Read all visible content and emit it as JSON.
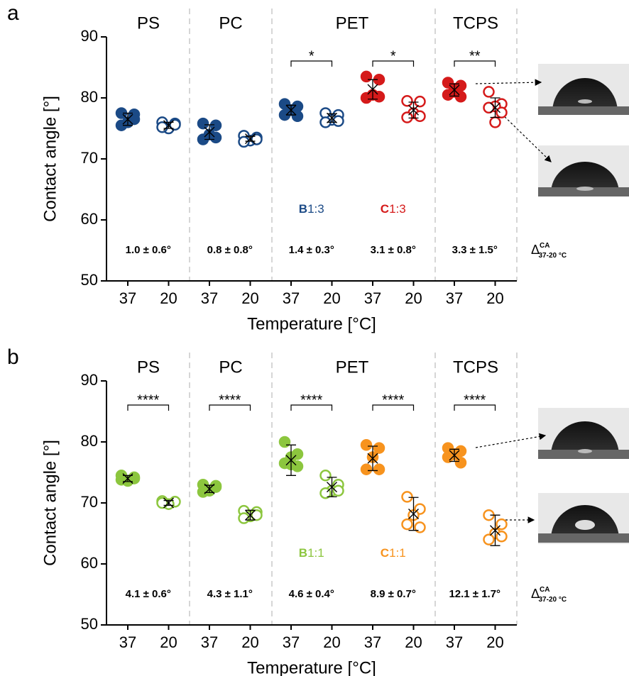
{
  "chart_data": [
    {
      "type": "strip",
      "panel": "a",
      "headers": [
        "PS",
        "PC",
        "PET",
        "TCPS"
      ],
      "categories": [
        "37",
        "20",
        "37",
        "20",
        "37",
        "20",
        "37",
        "20",
        "37",
        "20"
      ],
      "filled": [
        true,
        false,
        true,
        false,
        true,
        false,
        true,
        false,
        true,
        false
      ],
      "colors": [
        "#1b4a86",
        "#1b4a86",
        "#1b4a86",
        "#d51a1a",
        "#d51a1a"
      ],
      "points": [
        [
          77.5,
          77.3,
          76.0,
          75.5,
          76.5
        ],
        [
          76.0,
          75.8,
          75.0,
          75.2,
          75.6
        ],
        [
          75.8,
          75.5,
          74.0,
          73.2,
          73.5
        ],
        [
          73.8,
          73.5,
          73.0,
          72.8,
          73.2
        ],
        [
          79.0,
          78.6,
          78.0,
          77.2,
          77.0
        ],
        [
          77.5,
          77.2,
          76.4,
          76.0,
          76.2
        ],
        [
          83.5,
          83.0,
          80.5,
          80.0,
          80.2
        ],
        [
          79.5,
          79.4,
          77.5,
          76.8,
          77.0
        ],
        [
          82.5,
          82.0,
          81.0,
          80.5,
          80.2,
          81.5
        ],
        [
          81.0,
          79.0,
          78.6,
          78.4,
          77.6,
          76.0
        ]
      ],
      "means": [
        76.5,
        75.5,
        74.4,
        73.3,
        78.0,
        76.7,
        81.4,
        78.0,
        81.3,
        78.4
      ],
      "errors": [
        1.0,
        0.5,
        1.2,
        0.4,
        0.8,
        0.7,
        1.6,
        1.3,
        1.0,
        1.6
      ],
      "significance": [
        null,
        null,
        "*",
        "*",
        "**"
      ],
      "deltas": [
        "1.0 ± 0.6°",
        "0.8 ± 0.8°",
        "1.4 ± 0.3°",
        "3.1 ± 0.8°",
        "3.3 ± 1.5°"
      ],
      "annotations": [
        {
          "letter": "B",
          "ratio": "1:3"
        },
        {
          "letter": "C",
          "ratio": "1:3"
        }
      ],
      "delta_label": {
        "symbol": "Δ",
        "sup": "CA",
        "sub": "37-20 °C"
      },
      "ylim": [
        50,
        90
      ],
      "yticks": [
        50,
        60,
        70,
        80,
        90
      ],
      "ylabel": "Contact angle [°]",
      "xlabel": "Temperature [°C]"
    },
    {
      "type": "strip",
      "panel": "b",
      "headers": [
        "PS",
        "PC",
        "PET",
        "TCPS"
      ],
      "categories": [
        "37",
        "20",
        "37",
        "20",
        "37",
        "20",
        "37",
        "20",
        "37",
        "20"
      ],
      "filled": [
        true,
        false,
        true,
        false,
        true,
        false,
        true,
        false,
        true,
        false
      ],
      "colors": [
        "#8cc63e",
        "#8cc63e",
        "#8cc63e",
        "#f7931e",
        "#f7931e"
      ],
      "points": [
        [
          74.5,
          74.2,
          73.6,
          73.8,
          74.0
        ],
        [
          70.3,
          70.2,
          69.8,
          70.0
        ],
        [
          73.0,
          72.6,
          72.0,
          71.8,
          72.8
        ],
        [
          68.7,
          68.5,
          67.8,
          67.5,
          68.0
        ],
        [
          80.0,
          78.0,
          77.5,
          76.5,
          76.0,
          76.3
        ],
        [
          74.5,
          73.0,
          72.0,
          71.6,
          72.0
        ],
        [
          79.5,
          79.0,
          77.5,
          75.5,
          75.5
        ],
        [
          71.0,
          69.0,
          68.0,
          66.5,
          66.0
        ],
        [
          79.0,
          78.5,
          78.0,
          77.5,
          76.6
        ],
        [
          68.0,
          66.5,
          65.0,
          64.0,
          64.5
        ]
      ],
      "means": [
        74.0,
        70.0,
        72.3,
        68.0,
        77.0,
        72.6,
        77.3,
        68.2,
        77.8,
        65.5
      ],
      "errors": [
        0.5,
        0.4,
        0.6,
        0.8,
        2.5,
        1.6,
        2.0,
        2.7,
        1.0,
        2.5
      ],
      "significance": [
        "****",
        "****",
        "****",
        "****",
        "****"
      ],
      "deltas": [
        "4.1 ± 0.6°",
        "4.3 ± 1.1°",
        "4.6 ± 0.4°",
        "8.9 ± 0.7°",
        "12.1 ± 1.7°"
      ],
      "annotations": [
        {
          "letter": "B",
          "ratio": "1:1"
        },
        {
          "letter": "C",
          "ratio": "1:1"
        }
      ],
      "delta_label": {
        "symbol": "Δ",
        "sup": "CA",
        "sub": "37-20 °C"
      },
      "ylim": [
        50,
        90
      ],
      "yticks": [
        50,
        60,
        70,
        80,
        90
      ],
      "ylabel": "Contact angle [°]",
      "xlabel": "Temperature [°C]"
    }
  ]
}
